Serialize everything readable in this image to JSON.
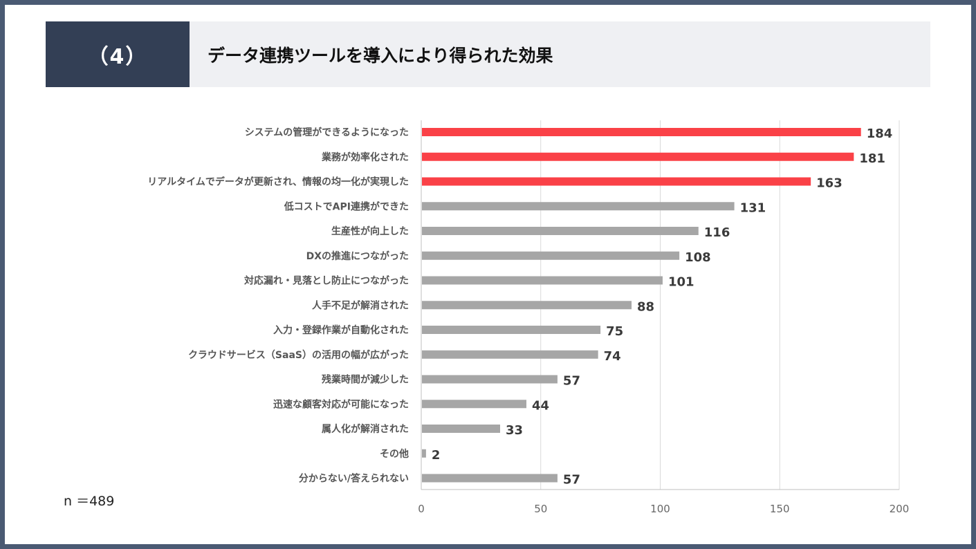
{
  "header": {
    "number": "（4）",
    "title": "データ連携ツールを導入により得られた効果"
  },
  "sample_size": "n ＝489",
  "colors": {
    "highlight": "#fa4147",
    "default": "#a6a6a6",
    "header_dark": "#333f55",
    "frame": "#4a5a73"
  },
  "chart_data": {
    "type": "bar",
    "orientation": "horizontal",
    "categories": [
      "システムの管理ができるようになった",
      "業務が効率化された",
      "リアルタイムでデータが更新され、情報の均一化が実現した",
      "低コストでAPI連携ができた",
      "生産性が向上した",
      "DXの推進につながった",
      "対応漏れ・見落とし防止につながった",
      "人手不足が解消された",
      "入力・登録作業が自動化された",
      "クラウドサービス（SaaS）の活用の幅が広がった",
      "残業時間が減少した",
      "迅速な顧客対応が可能になった",
      "属人化が解消された",
      "その他",
      "分からない/答えられない"
    ],
    "values": [
      184,
      181,
      163,
      131,
      116,
      108,
      101,
      88,
      75,
      74,
      57,
      44,
      33,
      2,
      57
    ],
    "highlighted_top": 3,
    "xlim": [
      0,
      200
    ],
    "xticks": [
      0,
      50,
      100,
      150,
      200
    ],
    "grid": true
  }
}
